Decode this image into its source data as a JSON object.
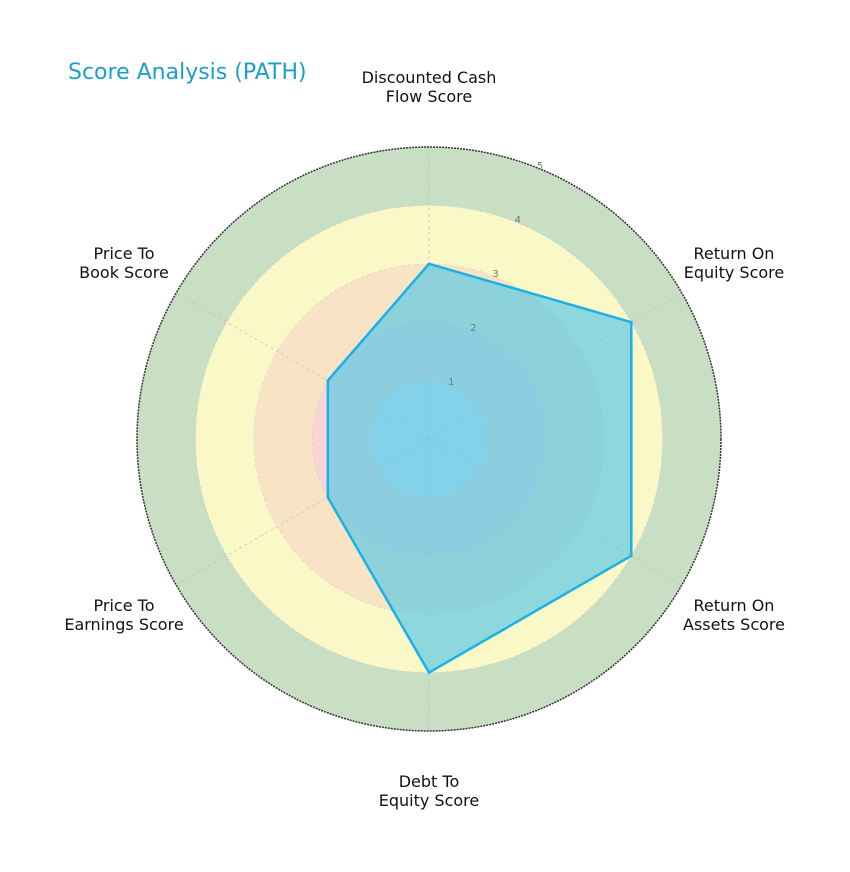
{
  "chart_data": {
    "type": "radar",
    "title": "Score Analysis (PATH)",
    "categories": [
      "Discounted Cash\nFlow Score",
      "Return On\nEquity Score",
      "Return On\nAssets Score",
      "Debt To\nEquity Score",
      "Price To\nEarnings Score",
      "Price To\nBook Score"
    ],
    "series": [
      {
        "name": "PATH",
        "values": [
          3,
          4,
          4,
          4,
          2,
          2
        ]
      }
    ],
    "rlim": [
      0,
      5
    ],
    "r_ticks": [
      "1",
      "2",
      "3",
      "4",
      "5"
    ],
    "band_colors": [
      "#8fa8c8",
      "#f4c2c2",
      "#f7ddb8",
      "#fbf5c4",
      "#c8dfc4"
    ],
    "series_color": "#1ab0e8",
    "fill_color": "#5fcbe6"
  }
}
